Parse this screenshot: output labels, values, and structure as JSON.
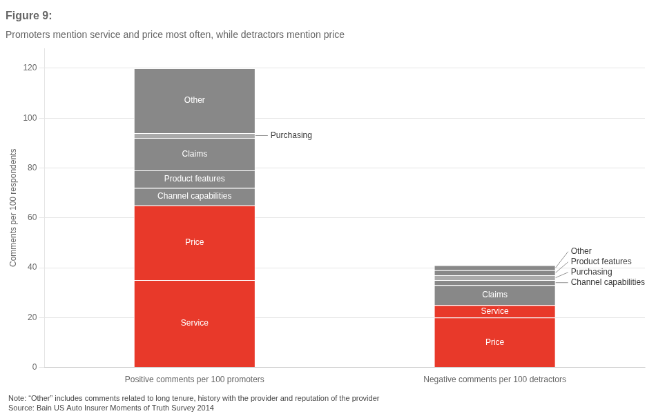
{
  "chart_data": {
    "type": "bar",
    "title": "Figure 9:",
    "subtitle": "Promoters mention service and price most often, while detractors mention price",
    "ylabel": "Comments per 100 respondents",
    "categories": [
      "Positive comments per 100 promoters",
      "Negative comments per 100 detractors"
    ],
    "stacked": true,
    "series": [
      {
        "name": "Service",
        "color": "#e8392a",
        "values": [
          35,
          null
        ]
      },
      {
        "name": "Price",
        "color": "#e8392a",
        "values": [
          30,
          null
        ]
      },
      {
        "name": "Channel capabilities",
        "color": "#888888",
        "values": [
          7,
          null
        ]
      },
      {
        "name": "Product features",
        "color": "#888888",
        "values": [
          7,
          null
        ]
      },
      {
        "name": "Claims",
        "color": "#888888",
        "values": [
          13,
          null
        ]
      },
      {
        "name": "Purchasing",
        "color": "#aaaaaa",
        "values": [
          2,
          null
        ]
      },
      {
        "name": "Other",
        "color": "#888888",
        "values": [
          26,
          null
        ]
      },
      {
        "name": "Price",
        "color": "#e8392a",
        "values": [
          null,
          20
        ]
      },
      {
        "name": "Service",
        "color": "#e8392a",
        "values": [
          null,
          5
        ]
      },
      {
        "name": "Claims",
        "color": "#888888",
        "values": [
          null,
          8
        ]
      },
      {
        "name": "Channel capabilities",
        "color": "#888888",
        "values": [
          null,
          2
        ]
      },
      {
        "name": "Purchasing",
        "color": "#aaaaaa",
        "values": [
          null,
          2
        ]
      },
      {
        "name": "Product features",
        "color": "#888888",
        "values": [
          null,
          2
        ]
      },
      {
        "name": "Other",
        "color": "#888888",
        "values": [
          null,
          2
        ]
      }
    ],
    "ylim": [
      0,
      128
    ],
    "yticks": [
      0,
      20,
      40,
      60,
      80,
      100,
      120
    ],
    "grid": true,
    "annotations": [
      "Note: “Other” includes comments related to long tenure, history with the provider and reputation of the provider",
      "Source: Bain US Auto Insurer Moments of Truth Survey 2014"
    ]
  }
}
